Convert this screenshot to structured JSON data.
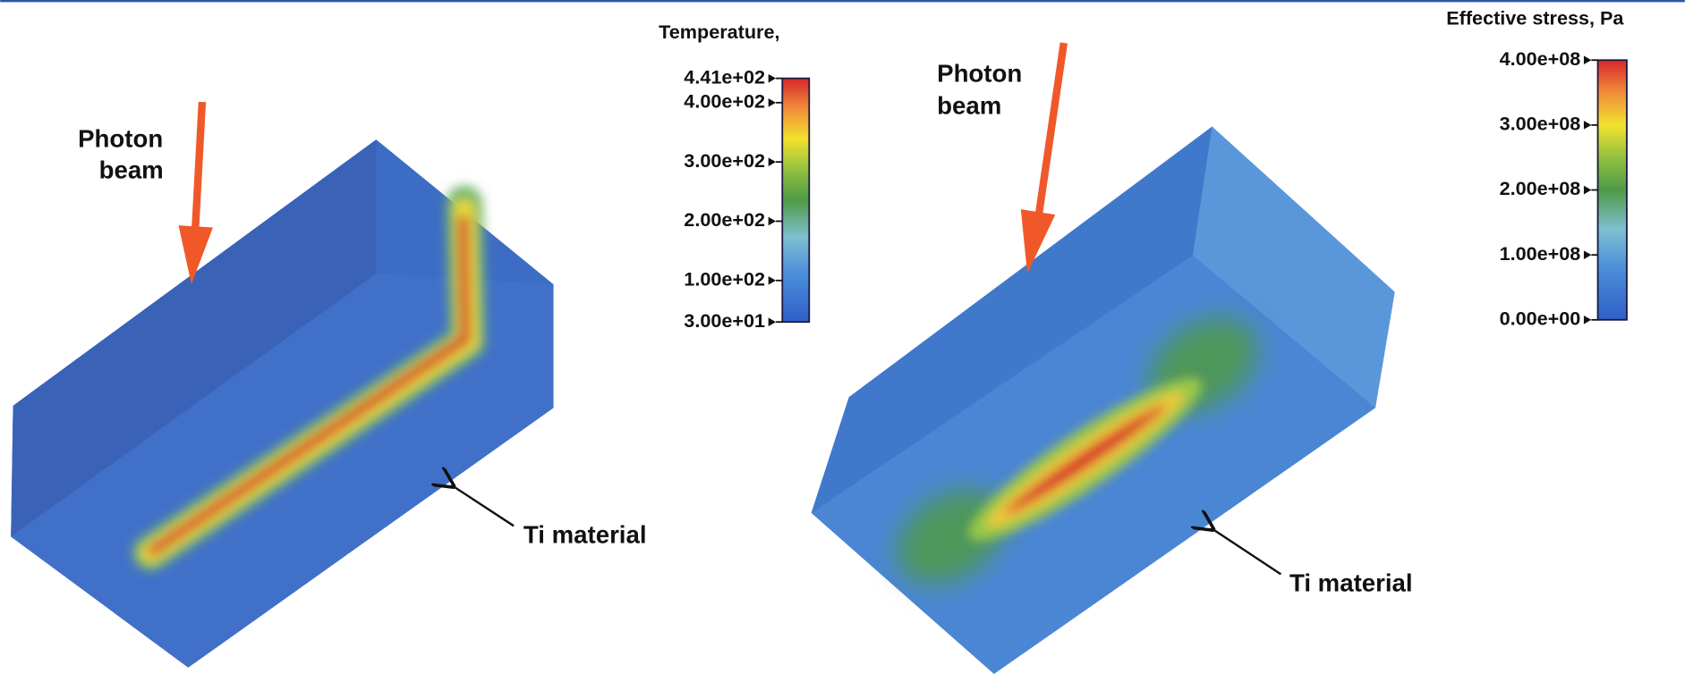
{
  "panels": [
    {
      "beam_label": [
        "Photon",
        "beam"
      ],
      "material_label": "Ti material",
      "colorbar": {
        "title": "Temperature,",
        "ticks": [
          {
            "value": 441,
            "label": "4.41e+02"
          },
          {
            "value": 400,
            "label": "4.00e+02"
          },
          {
            "value": 300,
            "label": "3.00e+02"
          },
          {
            "value": 200,
            "label": "2.00e+02"
          },
          {
            "value": 100,
            "label": "1.00e+02"
          },
          {
            "value": 30,
            "label": "3.00e+01"
          }
        ]
      }
    },
    {
      "beam_label": [
        "Photon",
        "beam"
      ],
      "material_label": "Ti material",
      "colorbar": {
        "title": "Effective stress, Pa",
        "ticks": [
          {
            "value": 400000000,
            "label": "4.00e+08"
          },
          {
            "value": 300000000,
            "label": "3.00e+08"
          },
          {
            "value": 200000000,
            "label": "2.00e+08"
          },
          {
            "value": 100000000,
            "label": "1.00e+08"
          },
          {
            "value": 0,
            "label": "0.00e+00"
          }
        ]
      }
    }
  ]
}
